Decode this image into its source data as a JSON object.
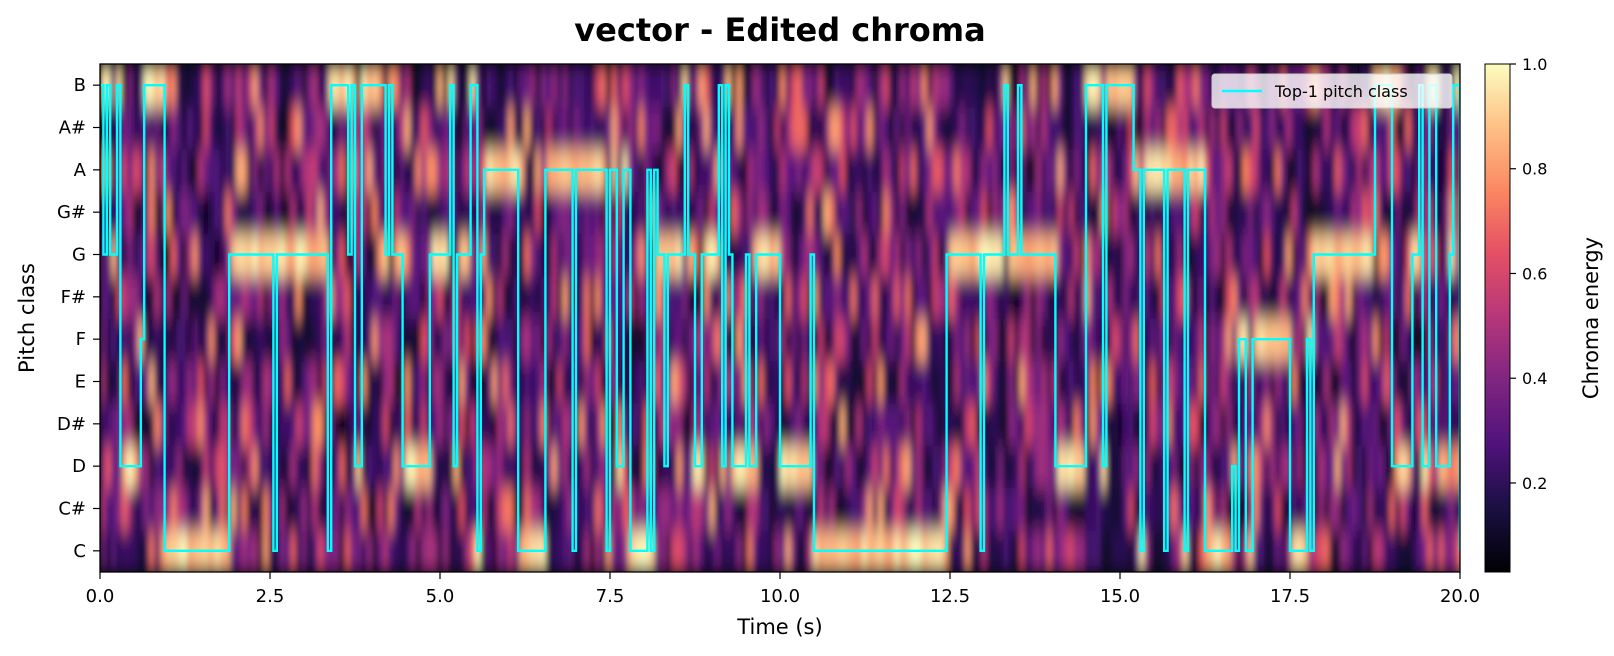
{
  "chart_data": {
    "type": "heatmap",
    "title": "vector - Edited chroma",
    "xlabel": "Time (s)",
    "ylabel": "Pitch class",
    "xlim": [
      0,
      20
    ],
    "x_ticks": [
      0.0,
      2.5,
      5.0,
      7.5,
      10.0,
      12.5,
      15.0,
      17.5,
      20.0
    ],
    "x_tick_labels": [
      "0.0",
      "2.5",
      "5.0",
      "7.5",
      "10.0",
      "12.5",
      "15.0",
      "17.5",
      "20.0"
    ],
    "pitch_classes": [
      "C",
      "C#",
      "D",
      "D#",
      "E",
      "F",
      "F#",
      "G",
      "G#",
      "A",
      "A#",
      "B"
    ],
    "colorbar": {
      "label": "Chroma energy",
      "range": [
        0.03,
        1.0
      ],
      "ticks": [
        0.2,
        0.4,
        0.6,
        0.8,
        1.0
      ],
      "tick_labels": [
        "0.2",
        "0.4",
        "0.6",
        "0.8",
        "1.0"
      ],
      "colormap": "magma"
    },
    "legend": {
      "position": "top-right",
      "entries": [
        "Top-1 pitch class"
      ]
    },
    "line_color": "#00ffff",
    "series": [
      {
        "name": "Top-1 pitch class",
        "times": [
          0.0,
          0.05,
          0.1,
          0.15,
          0.25,
          0.3,
          0.5,
          0.6,
          0.65,
          0.95,
          1.85,
          1.9,
          2.55,
          2.6,
          3.35,
          3.4,
          3.65,
          3.7,
          3.75,
          3.85,
          4.2,
          4.25,
          4.3,
          4.45,
          4.8,
          4.85,
          5.05,
          5.15,
          5.2,
          5.25,
          5.45,
          5.55,
          5.6,
          5.65,
          6.1,
          6.15,
          6.5,
          6.55,
          6.95,
          7.0,
          7.45,
          7.5,
          7.6,
          7.7,
          7.8,
          8.0,
          8.05,
          8.1,
          8.15,
          8.2,
          8.3,
          8.35,
          8.5,
          8.6,
          8.65,
          8.75,
          8.85,
          9.1,
          9.15,
          9.2,
          9.25,
          9.3,
          9.5,
          9.55,
          9.65,
          9.95,
          10.0,
          10.45,
          10.5,
          12.4,
          12.45,
          12.95,
          13.0,
          13.3,
          13.35,
          13.5,
          13.55,
          14.0,
          14.05,
          14.45,
          14.5,
          14.75,
          14.8,
          15.2,
          15.3,
          15.35,
          15.65,
          15.7,
          15.95,
          16.0,
          16.2,
          16.25,
          16.6,
          16.65,
          16.7,
          16.75,
          16.85,
          16.95,
          17.4,
          17.5,
          17.7,
          17.75,
          17.8,
          17.85,
          18.7,
          18.75,
          19.0,
          19.2,
          19.3,
          19.4,
          19.45,
          19.55,
          19.65,
          19.85,
          19.9,
          20.0
        ],
        "values": [
          11,
          7,
          11,
          7,
          11,
          2,
          2,
          5,
          11,
          0,
          0,
          7,
          0,
          7,
          0,
          11,
          7,
          11,
          2,
          11,
          7,
          11,
          7,
          2,
          2,
          7,
          7,
          11,
          2,
          7,
          11,
          0,
          7,
          9,
          9,
          0,
          0,
          9,
          0,
          9,
          0,
          9,
          2,
          9,
          0,
          0,
          9,
          0,
          9,
          7,
          2,
          7,
          7,
          11,
          7,
          2,
          7,
          11,
          2,
          11,
          7,
          2,
          7,
          2,
          7,
          7,
          2,
          7,
          0,
          0,
          7,
          0,
          7,
          11,
          7,
          11,
          7,
          7,
          2,
          2,
          11,
          2,
          11,
          9,
          0,
          9,
          0,
          9,
          0,
          9,
          9,
          0,
          0,
          2,
          0,
          5,
          0,
          5,
          5,
          0,
          0,
          5,
          0,
          7,
          7,
          11,
          2,
          2,
          7,
          11,
          2,
          11,
          2,
          7,
          11,
          0
        ]
      }
    ]
  }
}
